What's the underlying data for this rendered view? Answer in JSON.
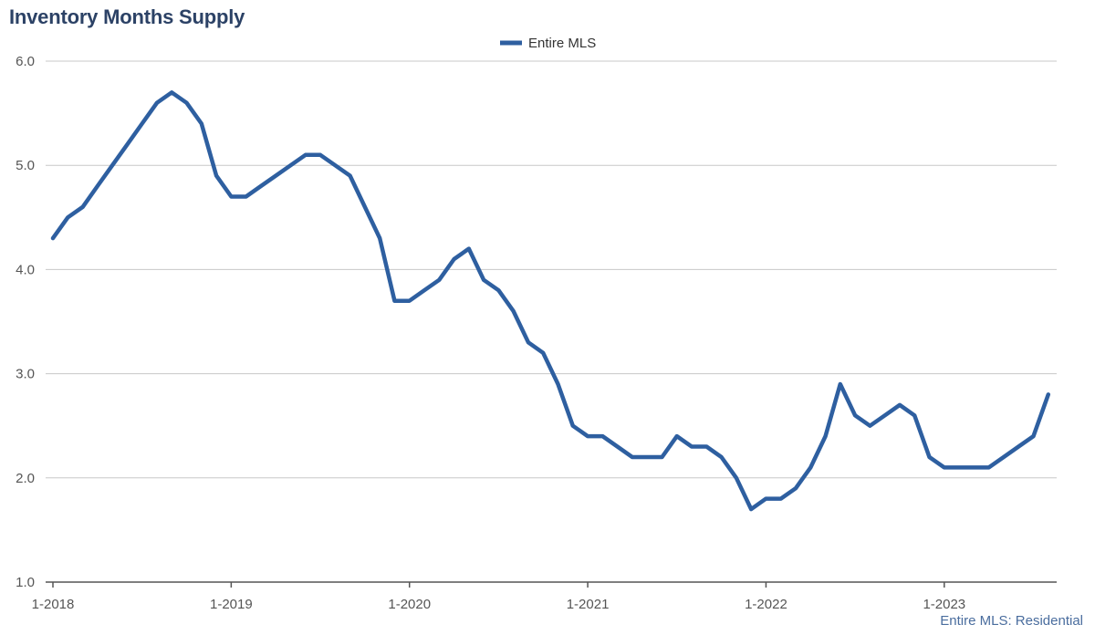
{
  "chart_data": {
    "type": "line",
    "title": "Inventory Months Supply",
    "xlabel": "",
    "ylabel": "",
    "ylim": [
      1.0,
      6.0
    ],
    "yticks": [
      "1.0",
      "2.0",
      "3.0",
      "4.0",
      "5.0",
      "6.0"
    ],
    "xticks": [
      "1-2018",
      "1-2019",
      "1-2020",
      "1-2021",
      "1-2022",
      "1-2023"
    ],
    "grid": true,
    "legend_position": "top-center",
    "x_start": "1-2018",
    "x_end": "8-2023",
    "series": [
      {
        "name": "Entire MLS",
        "color": "#2e5fa0",
        "values": [
          4.3,
          4.5,
          4.6,
          4.8,
          5.0,
          5.2,
          5.4,
          5.6,
          5.7,
          5.6,
          5.4,
          4.9,
          4.7,
          4.7,
          4.8,
          4.9,
          5.0,
          5.1,
          5.1,
          5.0,
          4.9,
          4.6,
          4.3,
          3.7,
          3.7,
          3.8,
          3.9,
          4.1,
          4.2,
          3.9,
          3.8,
          3.6,
          3.3,
          3.2,
          2.9,
          2.5,
          2.4,
          2.4,
          2.3,
          2.2,
          2.2,
          2.2,
          2.4,
          2.3,
          2.3,
          2.2,
          2.0,
          1.7,
          1.8,
          1.8,
          1.9,
          2.1,
          2.4,
          2.9,
          2.6,
          2.5,
          2.6,
          2.7,
          2.6,
          2.2,
          2.1,
          2.1,
          2.1,
          2.1,
          2.2,
          2.3,
          2.4,
          2.8
        ]
      }
    ],
    "source_note": "Entire MLS: Residential"
  }
}
